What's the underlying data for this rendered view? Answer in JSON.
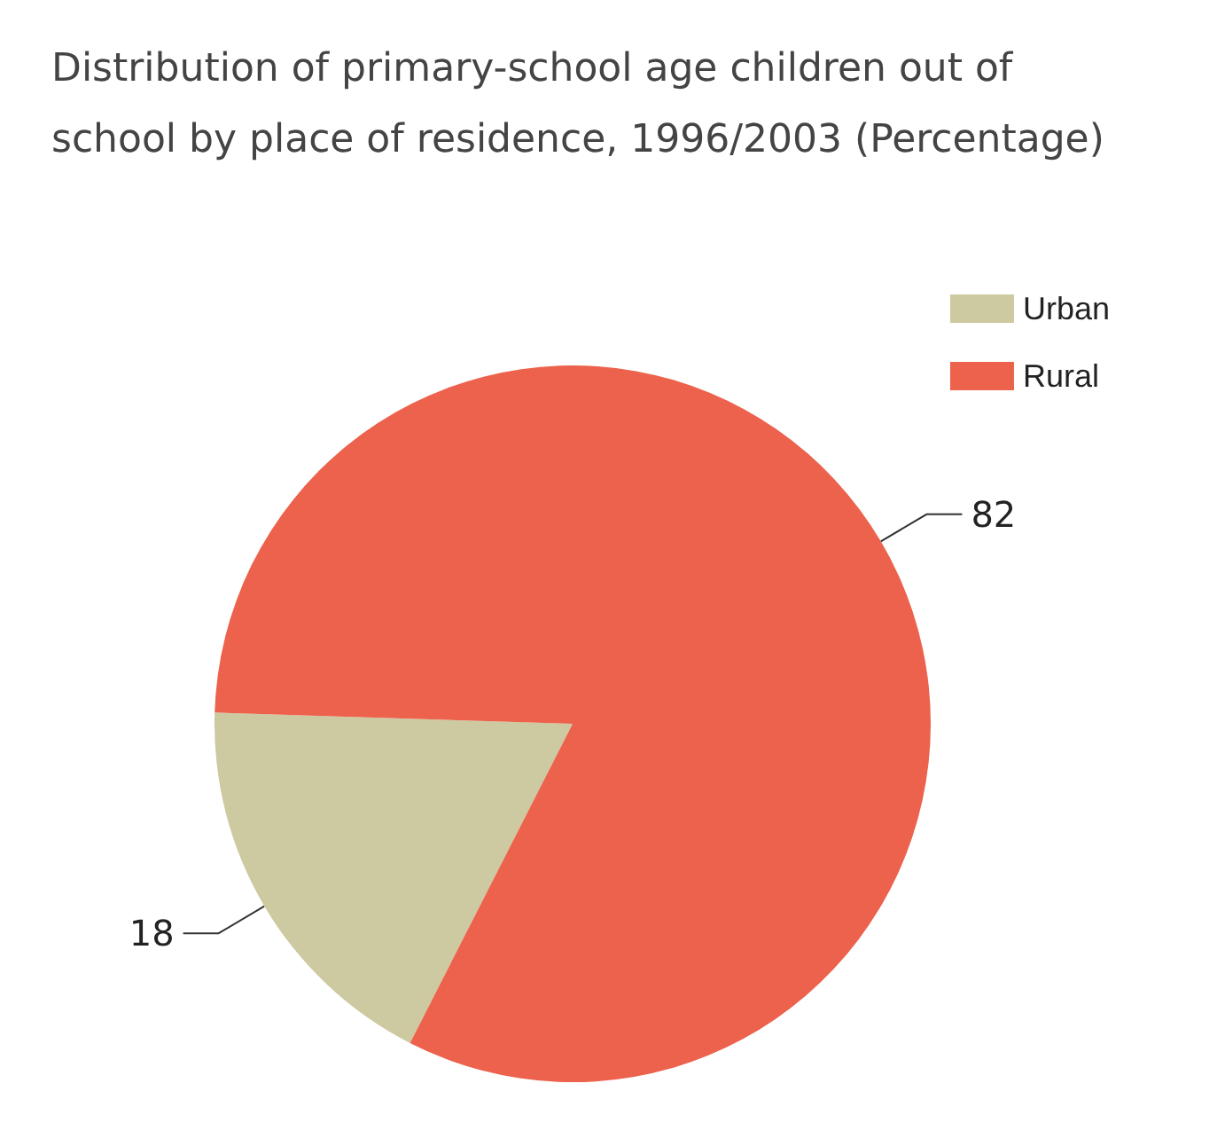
{
  "chart_data": {
    "type": "pie",
    "title": "Distribution of primary-school age children out of\nschool by place of residence, 1996/2003 (Percentage)",
    "categories": [
      "Urban",
      "Rural"
    ],
    "values": [
      18,
      82
    ],
    "colors": [
      "#cdc9a0",
      "#ec624c"
    ],
    "data_labels": true,
    "legend": "top right"
  }
}
